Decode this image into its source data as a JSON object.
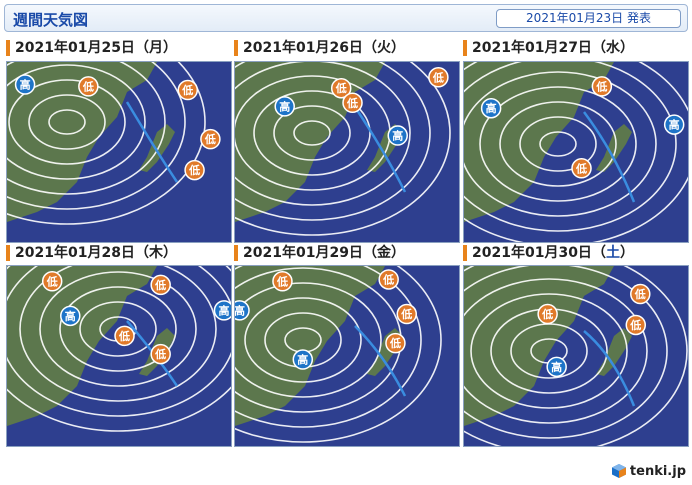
{
  "header": {
    "title": "週間天気図",
    "issued": "2021年01月23日 発表"
  },
  "labels": {
    "high": "高",
    "low": "低"
  },
  "colors": {
    "sea": "#2e3f8f",
    "land": "#5f7a4a",
    "high": "#1e74c8",
    "low": "#e07a2a",
    "isobar": "#ffffff",
    "cold_front": "#3a8de0",
    "warm_front": "#d82020",
    "accent": "#e8831b"
  },
  "panels": [
    {
      "date": "2021年01月25日",
      "dow_open": "（",
      "dow": "月",
      "dow_close": "）",
      "saturday": false,
      "highs": [
        [
          0.08,
          0.08
        ]
      ],
      "lows": [
        [
          0.36,
          0.09
        ],
        [
          0.8,
          0.11
        ],
        [
          0.9,
          0.38
        ],
        [
          0.83,
          0.55
        ]
      ]
    },
    {
      "date": "2021年01月26日",
      "dow_open": "（",
      "dow": "火",
      "dow_close": "）",
      "saturday": false,
      "highs": [
        [
          0.22,
          0.2
        ],
        [
          0.72,
          0.36
        ]
      ],
      "lows": [
        [
          0.47,
          0.1
        ],
        [
          0.52,
          0.18
        ],
        [
          0.9,
          0.04
        ]
      ]
    },
    {
      "date": "2021年01月27日",
      "dow_open": "（",
      "dow": "水",
      "dow_close": "）",
      "saturday": false,
      "highs": [
        [
          0.12,
          0.21
        ],
        [
          0.93,
          0.3
        ]
      ],
      "lows": [
        [
          0.61,
          0.09
        ],
        [
          0.52,
          0.54
        ]
      ]
    },
    {
      "date": "2021年01月28日",
      "dow_open": "（",
      "dow": "木",
      "dow_close": "）",
      "saturday": false,
      "highs": [
        [
          0.28,
          0.23
        ],
        [
          0.96,
          0.2
        ]
      ],
      "lows": [
        [
          0.2,
          0.04
        ],
        [
          0.68,
          0.06
        ],
        [
          0.52,
          0.34
        ],
        [
          0.68,
          0.44
        ]
      ]
    },
    {
      "date": "2021年01月29日",
      "dow_open": "（",
      "dow": "金",
      "dow_close": "）",
      "saturday": false,
      "highs": [
        [
          0.02,
          0.2
        ],
        [
          0.3,
          0.47
        ]
      ],
      "lows": [
        [
          0.21,
          0.04
        ],
        [
          0.68,
          0.03
        ],
        [
          0.76,
          0.22
        ],
        [
          0.71,
          0.38
        ]
      ]
    },
    {
      "date": "2021年01月30日",
      "dow_open": "（",
      "dow": "土",
      "dow_close": "）",
      "saturday": true,
      "highs": [
        [
          0.41,
          0.51
        ]
      ],
      "lows": [
        [
          0.37,
          0.22
        ],
        [
          0.78,
          0.11
        ],
        [
          0.76,
          0.28
        ]
      ]
    }
  ],
  "logo": {
    "text": "tenki.jp"
  }
}
